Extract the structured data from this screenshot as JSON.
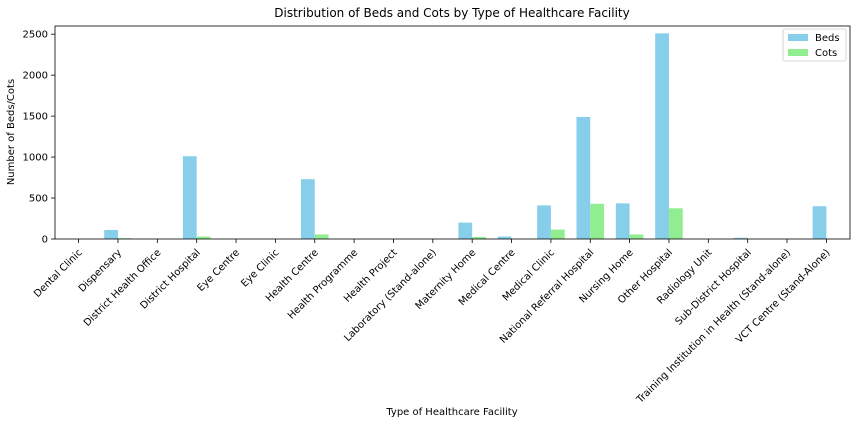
{
  "chart_data": {
    "type": "bar",
    "title": "Distribution of Beds and Cots by Type of Healthcare Facility",
    "xlabel": "Type of Healthcare Facility",
    "ylabel": "Number of Beds/Cots",
    "ylim": [
      0,
      2600
    ],
    "yticks": [
      0,
      500,
      1000,
      1500,
      2000,
      2500
    ],
    "grid": false,
    "legend_position": "top-right",
    "categories": [
      "Dental Clinic",
      "Dispensary",
      "District Health Office",
      "District Hospital",
      "Eye Centre",
      "Eye Clinic",
      "Health Centre",
      "Health Programme",
      "Health Project",
      "Laboratory (Stand-alone)",
      "Maternity Home",
      "Medical Centre",
      "Medical Clinic",
      "National Referral Hospital",
      "Nursing Home",
      "Other Hospital",
      "Radiology Unit",
      "Sub-District Hospital",
      "Training Institution in Health (Stand-alone)",
      "VCT Centre (Stand-Alone)"
    ],
    "series": [
      {
        "name": "Beds",
        "color": "#87ceeb",
        "values": [
          0,
          110,
          0,
          1010,
          0,
          0,
          730,
          0,
          0,
          0,
          200,
          30,
          410,
          1490,
          435,
          2510,
          0,
          15,
          0,
          400
        ]
      },
      {
        "name": "Cots",
        "color": "#90ee90",
        "values": [
          0,
          10,
          0,
          30,
          0,
          0,
          55,
          0,
          0,
          0,
          25,
          0,
          115,
          430,
          55,
          375,
          0,
          0,
          0,
          0
        ]
      }
    ]
  }
}
